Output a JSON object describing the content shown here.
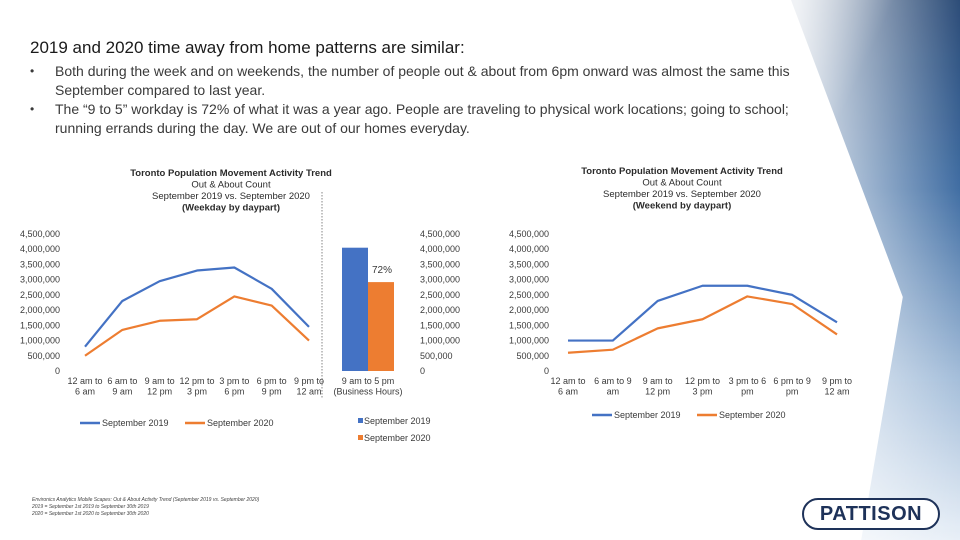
{
  "slide": {
    "title": "2019 and 2020 time away from home patterns are similar:",
    "bullets": [
      "Both during the week and on weekends, the number of people out & about from 6pm onward was almost the same this September compared to last year.",
      "The “9 to 5” workday is 72% of what it was a year ago.  People are traveling to physical work locations; going to school; running errands during the day. We are out of our homes everyday."
    ],
    "footnote_lines": [
      "Environics Analytics Mobile Scapes: Out & About Activity Trend (September 2019 vs. September 2020)",
      "2019 = September 1st 2019 to September 30th 2019",
      "2020 = September 1st 2020 to September 30th 2020"
    ],
    "logo_text": "PATTISON",
    "colors": {
      "series_2019": "#4472c4",
      "series_2020": "#ed7d31",
      "logo": "#1e3259"
    }
  },
  "chart_data": [
    {
      "type": "line",
      "title_lines": [
        "Toronto Population Movement Activity Trend",
        "Out & About Count",
        "September 2019 vs. September 2020",
        "(Weekday by daypart)"
      ],
      "categories": [
        [
          "12 am to",
          "6 am"
        ],
        [
          "6 am to",
          "9 am"
        ],
        [
          "9 am to",
          "12 pm"
        ],
        [
          "12 pm to",
          "3 pm"
        ],
        [
          "3 pm to",
          "6 pm"
        ],
        [
          "6 pm to",
          "9 pm"
        ],
        [
          "9 pm to",
          "12 am"
        ]
      ],
      "y_ticks": [
        "0",
        "500,000",
        "1,000,000",
        "1,500,000",
        "2,000,000",
        "2,500,000",
        "3,000,000",
        "3,500,000",
        "4,000,000",
        "4,500,000"
      ],
      "ylim": [
        0,
        4500000
      ],
      "series": [
        {
          "name": "September 2019",
          "values": [
            800000,
            2300000,
            2950000,
            3300000,
            3400000,
            2700000,
            1450000
          ]
        },
        {
          "name": "September 2020",
          "values": [
            500000,
            1350000,
            1650000,
            1700000,
            2450000,
            2150000,
            1000000
          ]
        }
      ]
    },
    {
      "type": "bar",
      "categories": [
        [
          "9 am to 5 pm",
          "(Business Hours)"
        ]
      ],
      "annotation": "72%",
      "y_ticks": [
        "0",
        "500,000",
        "1,000,000",
        "1,500,000",
        "2,000,000",
        "2,500,000",
        "3,000,000",
        "3,500,000",
        "4,000,000",
        "4,500,000"
      ],
      "ylim": [
        0,
        4500000
      ],
      "series": [
        {
          "name": "September 2019",
          "values": [
            4050000
          ]
        },
        {
          "name": "September 2020",
          "values": [
            2920000
          ]
        }
      ]
    },
    {
      "type": "line",
      "title_lines": [
        "Toronto Population Movement Activity Trend",
        "Out & About Count",
        "September 2019 vs. September 2020",
        "(Weekend by daypart)"
      ],
      "categories": [
        [
          "12 am to",
          "6 am"
        ],
        [
          "6 am to 9",
          "am"
        ],
        [
          "9 am to",
          "12 pm"
        ],
        [
          "12 pm to",
          "3 pm"
        ],
        [
          "3 pm to 6",
          "pm"
        ],
        [
          "6 pm to 9",
          "pm"
        ],
        [
          "9 pm to",
          "12 am"
        ]
      ],
      "y_ticks": [
        "0",
        "500,000",
        "1,000,000",
        "1,500,000",
        "2,000,000",
        "2,500,000",
        "3,000,000",
        "3,500,000",
        "4,000,000",
        "4,500,000"
      ],
      "ylim": [
        0,
        4500000
      ],
      "series": [
        {
          "name": "September 2019",
          "values": [
            1000000,
            1000000,
            2300000,
            2800000,
            2800000,
            2500000,
            1600000
          ]
        },
        {
          "name": "September 2020",
          "values": [
            600000,
            700000,
            1400000,
            1700000,
            2450000,
            2200000,
            1200000
          ]
        }
      ]
    }
  ]
}
